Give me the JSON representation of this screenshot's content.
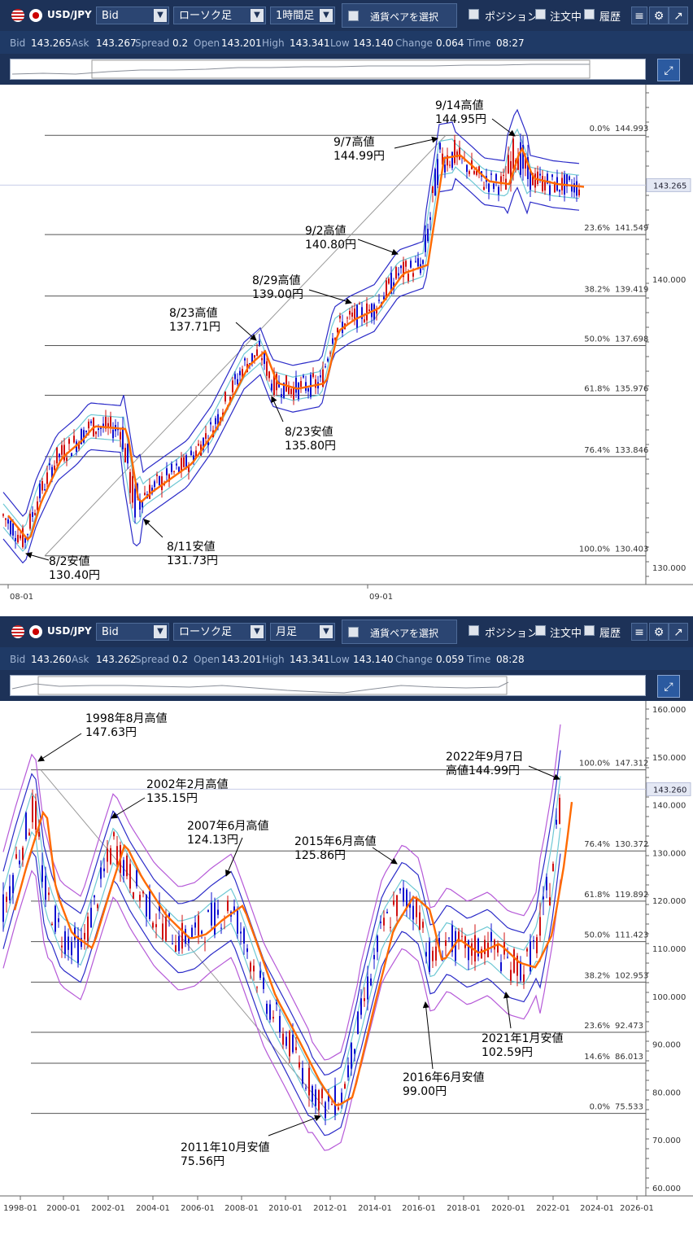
{
  "panels": [
    {
      "toolbar": {
        "pair": "USD/JPY",
        "price_type": "Bid",
        "chart_type": "ローソク足",
        "timeframe": "1時間足",
        "select_pair": "通貨ペアを選択",
        "position": "ポジション",
        "orders": "注文中",
        "history": "履歴"
      },
      "quote": {
        "bid_label": "Bid",
        "bid": "143.265",
        "ask_label": "Ask",
        "ask": "143.267",
        "spread_label": "Spread",
        "spread": "0.2",
        "open_label": "Open",
        "open": "143.201",
        "high_label": "High",
        "high": "143.341",
        "low_label": "Low",
        "low": "143.140",
        "change_label": "Change",
        "change": "0.064",
        "time_label": "Time",
        "time": "08:27"
      },
      "current_price": "143.265",
      "y_ticks": [
        "140.000",
        "130.000"
      ],
      "x_ticks": [
        "08-01",
        "09-01"
      ],
      "fib_levels": [
        {
          "pct": "0.0%",
          "value": "144.993"
        },
        {
          "pct": "23.6%",
          "value": "141.549"
        },
        {
          "pct": "38.2%",
          "value": "139.419"
        },
        {
          "pct": "50.0%",
          "value": "137.698"
        },
        {
          "pct": "61.8%",
          "value": "135.976"
        },
        {
          "pct": "76.4%",
          "value": "133.846"
        },
        {
          "pct": "100.0%",
          "value": "130.403"
        }
      ],
      "annotations": [
        {
          "line1": "9/14高値",
          "line2": "144.95円"
        },
        {
          "line1": "9/7高値",
          "line2": "144.99円"
        },
        {
          "line1": "9/2高値",
          "line2": "140.80円"
        },
        {
          "line1": "8/29高値",
          "line2": "139.00円"
        },
        {
          "line1": "8/23高値",
          "line2": "137.71円"
        },
        {
          "line1": "8/23安値",
          "line2": "135.80円"
        },
        {
          "line1": "8/11安値",
          "line2": "131.73円"
        },
        {
          "line1": "8/2安値",
          "line2": "130.40円"
        }
      ]
    },
    {
      "toolbar": {
        "pair": "USD/JPY",
        "price_type": "Bid",
        "chart_type": "ローソク足",
        "timeframe": "月足",
        "select_pair": "通貨ペアを選択",
        "position": "ポジション",
        "orders": "注文中",
        "history": "履歴"
      },
      "quote": {
        "bid_label": "Bid",
        "bid": "143.260",
        "ask_label": "Ask",
        "ask": "143.262",
        "spread_label": "Spread",
        "spread": "0.2",
        "open_label": "Open",
        "open": "143.201",
        "high_label": "High",
        "high": "143.341",
        "low_label": "Low",
        "low": "143.140",
        "change_label": "Change",
        "change": "0.059",
        "time_label": "Time",
        "time": "08:28"
      },
      "current_price": "143.260",
      "y_ticks": [
        "160.000",
        "150.000",
        "140.000",
        "130.000",
        "120.000",
        "110.000",
        "100.000",
        "90.000",
        "80.000",
        "70.000",
        "60.000"
      ],
      "x_ticks": [
        "1998-01",
        "2000-01",
        "2002-01",
        "2004-01",
        "2006-01",
        "2008-01",
        "2010-01",
        "2012-01",
        "2014-01",
        "2016-01",
        "2018-01",
        "2020-01",
        "2022-01",
        "2024-01",
        "2026-01"
      ],
      "fib_levels": [
        {
          "pct": "100.0%",
          "value": "147.312"
        },
        {
          "pct": "76.4%",
          "value": "130.372"
        },
        {
          "pct": "61.8%",
          "value": "119.892"
        },
        {
          "pct": "50.0%",
          "value": "111.423"
        },
        {
          "pct": "38.2%",
          "value": "102.953"
        },
        {
          "pct": "23.6%",
          "value": "92.473"
        },
        {
          "pct": "14.6%",
          "value": "86.013"
        },
        {
          "pct": "0.0%",
          "value": "75.533"
        }
      ],
      "annotations": [
        {
          "line1": "1998年8月高値",
          "line2": "147.63円"
        },
        {
          "line1": "2002年2月高値",
          "line2": "135.15円"
        },
        {
          "line1": "2007年6月高値",
          "line2": "124.13円"
        },
        {
          "line1": "2015年6月高値",
          "line2": "125.86円"
        },
        {
          "line1": "2022年9月7日",
          "line2": "高値144.99円"
        },
        {
          "line1": "2021年1月安値",
          "line2": "102.59円"
        },
        {
          "line1": "2016年6月安値",
          "line2": "99.00円"
        },
        {
          "line1": "2011年10月安値",
          "line2": "75.56円"
        }
      ]
    }
  ],
  "chart_data": [
    {
      "type": "candlestick",
      "title": "USD/JPY 1時間足",
      "y_axis_values": [
        130,
        140
      ],
      "current": 143.265,
      "fib_values": [
        144.993,
        141.549,
        139.419,
        137.698,
        135.976,
        133.846,
        130.403
      ],
      "key_points": [
        {
          "label": "8/2安値",
          "value": 130.4
        },
        {
          "label": "8/11安値",
          "value": 131.73
        },
        {
          "label": "8/23高値",
          "value": 137.71
        },
        {
          "label": "8/23安値",
          "value": 135.8
        },
        {
          "label": "8/29高値",
          "value": 139.0
        },
        {
          "label": "9/2高値",
          "value": 140.8
        },
        {
          "label": "9/7高値",
          "value": 144.99
        },
        {
          "label": "9/14高値",
          "value": 144.95
        }
      ]
    },
    {
      "type": "candlestick",
      "title": "USD/JPY 月足",
      "y_axis_values": [
        60,
        70,
        80,
        90,
        100,
        110,
        120,
        130,
        140,
        150,
        160
      ],
      "current": 143.26,
      "fib_values": [
        147.312,
        130.372,
        119.892,
        111.423,
        102.953,
        92.473,
        86.013,
        75.533
      ],
      "key_points": [
        {
          "label": "1998年8月高値",
          "value": 147.63
        },
        {
          "label": "2002年2月高値",
          "value": 135.15
        },
        {
          "label": "2007年6月高値",
          "value": 124.13
        },
        {
          "label": "2011年10月安値",
          "value": 75.56
        },
        {
          "label": "2015年6月高値",
          "value": 125.86
        },
        {
          "label": "2016年6月安値",
          "value": 99.0
        },
        {
          "label": "2021年1月安値",
          "value": 102.59
        },
        {
          "label": "2022年9月7日 高値",
          "value": 144.99
        }
      ]
    }
  ],
  "colors": {
    "toolbar": "#1d3258",
    "quote_bar": "#1f3a66",
    "sma": "#ff6a00",
    "band_inner": "#6ec8d4",
    "band_outer1": "#2b2bc8",
    "band_outer2": "#b65ad8",
    "candle_up": "#d01010",
    "candle_down": "#1010d0",
    "grid": "#555555"
  },
  "icons": [
    "us-flag-icon",
    "jp-flag-icon",
    "menu-icon",
    "gear-icon",
    "popout-icon",
    "fullscreen-icon"
  ]
}
